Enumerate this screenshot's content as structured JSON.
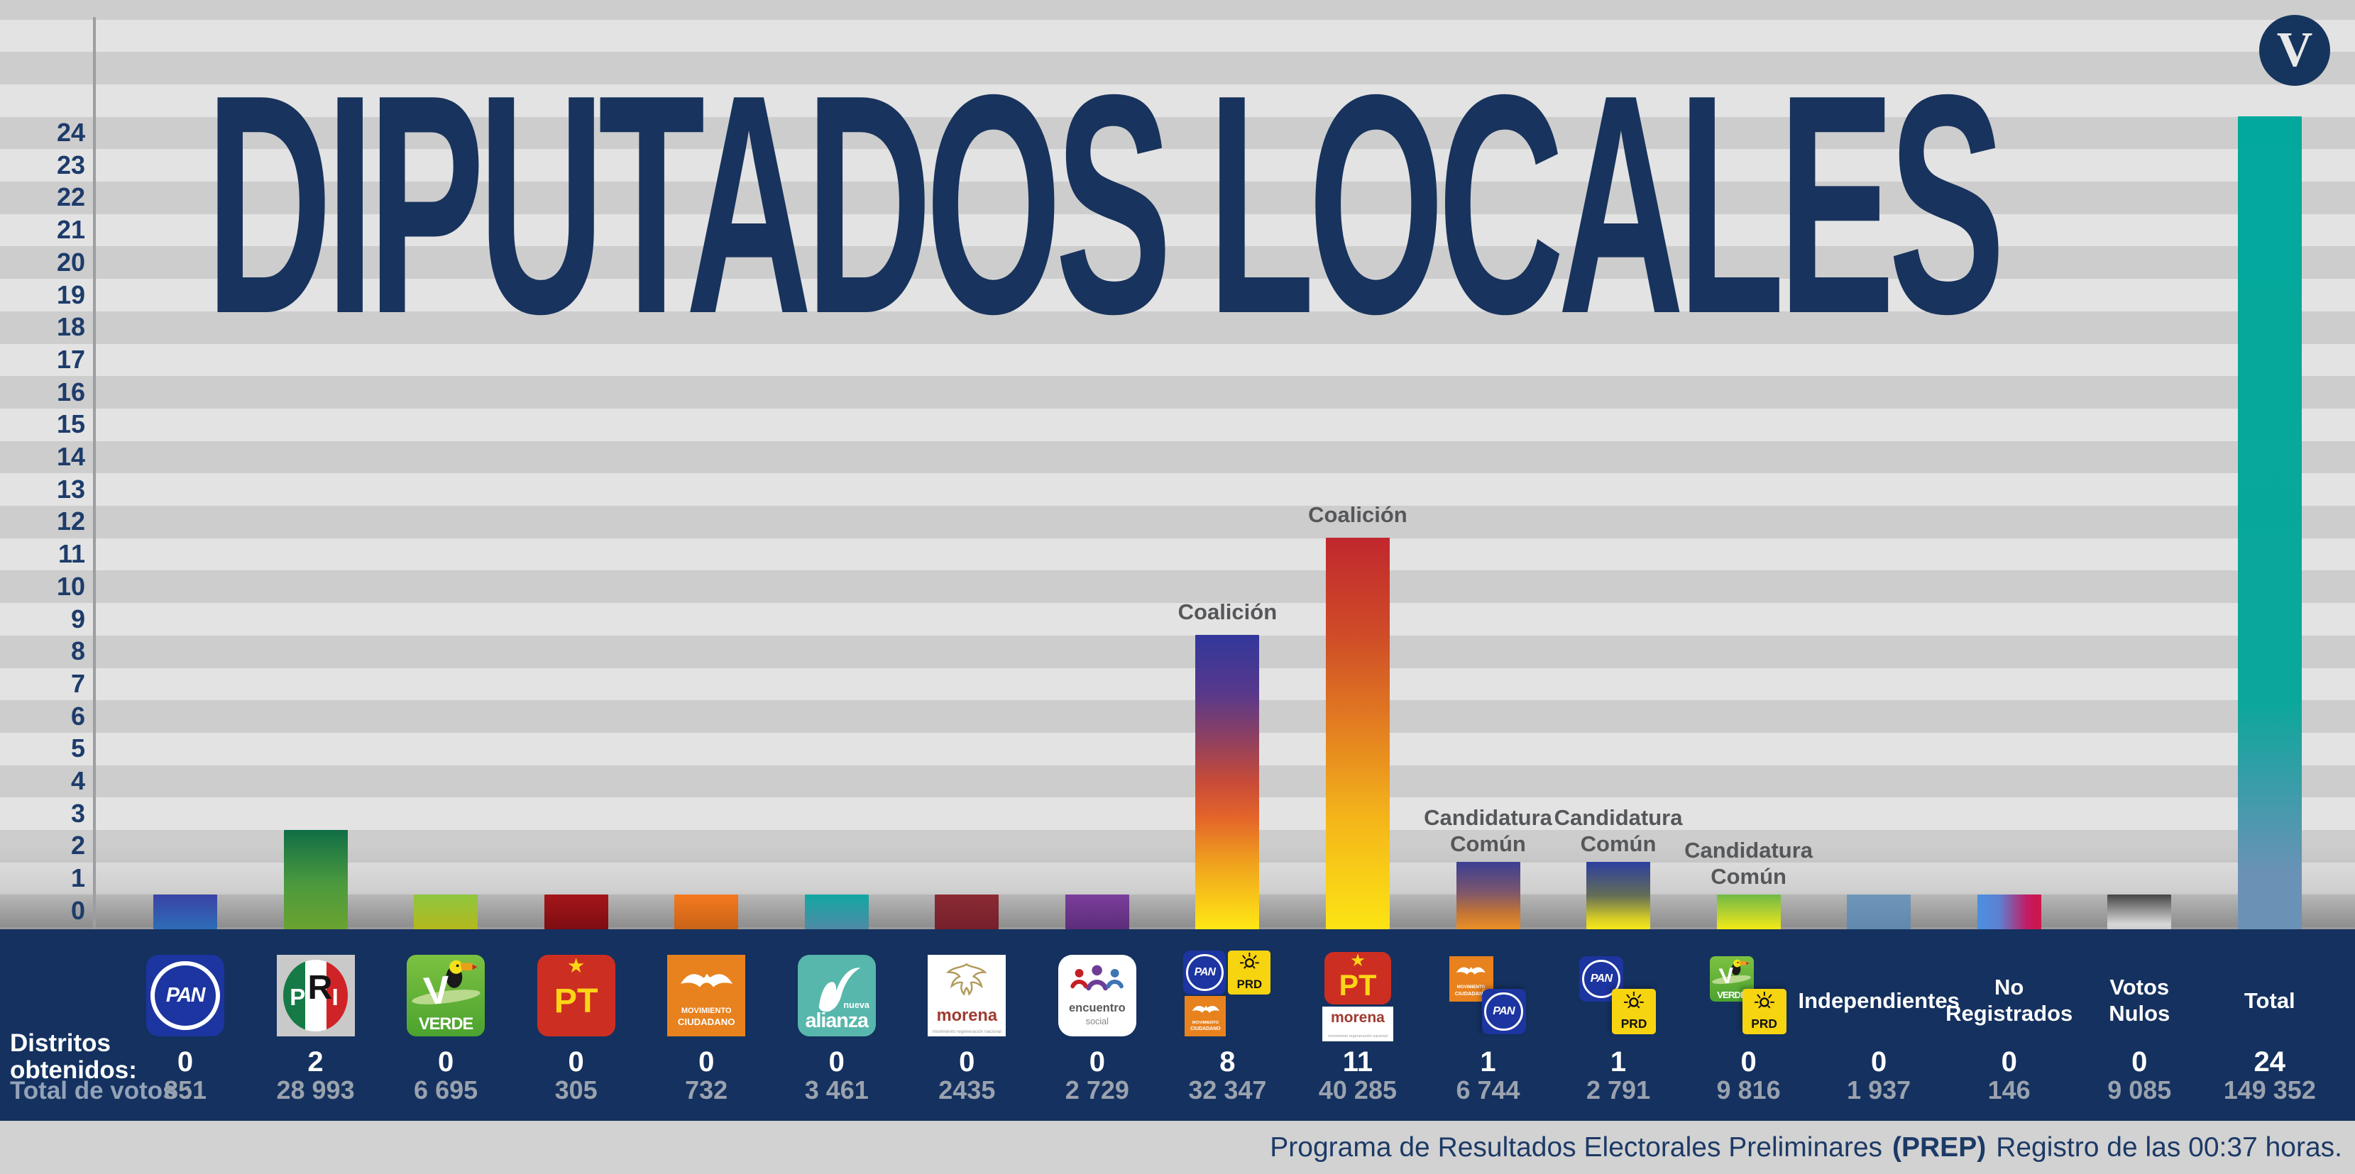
{
  "title": "DIPUTADOS LOCALES",
  "brand": {
    "letter": "V"
  },
  "footer": {
    "pre": "Programa de Resultados Electorales Preliminares",
    "bold": "(PREP)",
    "post": "Registro de las 00:37 horas."
  },
  "left_labels": {
    "districts": "Distritos obtenidos:",
    "votes": "Total de votos :"
  },
  "axis": {
    "min": 0,
    "max": 24
  },
  "colors": {
    "navy_band": "#14315f",
    "footer_bg": "#d2d2d2",
    "title": "#18335d",
    "stripe_dark": "#cdcdcd",
    "stripe_light": "#e3e3e3",
    "axis_text": "#1d3c6b",
    "annotation_text": "#55575a",
    "districts_text": "#ffffff",
    "votes_text": "#9aa2ae"
  },
  "chart_data": {
    "type": "bar",
    "title": "DIPUTADOS LOCALES",
    "xlabel": "",
    "ylabel": "Distritos obtenidos",
    "ylim": [
      0,
      24
    ],
    "grid": "horizontal-stripes",
    "legend_position": "none",
    "categories": [
      "PAN",
      "PRI",
      "VERDE",
      "PT",
      "Movimiento Ciudadano",
      "Nueva Alianza",
      "Morena",
      "Encuentro Social",
      "Coalición PAN-PRD-MC",
      "Coalición PT-Morena",
      "Candidatura Común MC-PAN",
      "Candidatura Común PAN-PRD",
      "Candidatura Común VERDE-PRD",
      "Independientes",
      "No Registrados",
      "Votos Nulos",
      "Total"
    ],
    "series": [
      {
        "name": "Distritos obtenidos",
        "values": [
          0,
          2,
          0,
          0,
          0,
          0,
          0,
          0,
          8,
          11,
          1,
          1,
          0,
          0,
          0,
          0,
          24
        ]
      },
      {
        "name": "Total de votos",
        "values": [
          851,
          28993,
          6695,
          305,
          732,
          3461,
          2435,
          2729,
          32347,
          40285,
          6744,
          2791,
          9816,
          1937,
          146,
          9085,
          149352
        ]
      }
    ],
    "annotations": [
      {
        "index": 8,
        "text": "Coalición"
      },
      {
        "index": 9,
        "text": "Coalición"
      },
      {
        "index": 10,
        "text": "Candidatura Común"
      },
      {
        "index": 11,
        "text": "Candidatura Común"
      },
      {
        "index": 12,
        "text": "Candidatura Común"
      }
    ]
  },
  "columns": [
    {
      "name": "pan",
      "value": 0,
      "districts": "0",
      "votes": "851",
      "annotation": null,
      "bar_css": "linear-gradient(180deg,#3a43a4 0%,#2e6cb8 100%)",
      "logo": {
        "layout": "single",
        "tiles": [
          {
            "type": "pan",
            "text": "PAN"
          }
        ]
      }
    },
    {
      "name": "pri",
      "value": 2,
      "districts": "2",
      "votes": "28 993",
      "annotation": null,
      "bar_css": "linear-gradient(180deg,#106e46 0%,#4c9a3e 55%,#6aa330 100%)",
      "logo": {
        "layout": "single",
        "tiles": [
          {
            "type": "pri",
            "letters": [
              "P",
              "R",
              "I"
            ]
          }
        ]
      }
    },
    {
      "name": "verde",
      "value": 0,
      "districts": "0",
      "votes": "6 695",
      "annotation": null,
      "bar_css": "linear-gradient(180deg,#8ec63f 0%,#b4b81d 100%)",
      "logo": {
        "layout": "single",
        "tiles": [
          {
            "type": "verde",
            "v": "V",
            "text": "VERDE"
          }
        ]
      }
    },
    {
      "name": "pt",
      "value": 0,
      "districts": "0",
      "votes": "305",
      "annotation": null,
      "bar_css": "linear-gradient(180deg,#a4161a 0%,#7e0d12 100%)",
      "logo": {
        "layout": "single",
        "tiles": [
          {
            "type": "pt",
            "star": "★",
            "text": "PT"
          }
        ]
      }
    },
    {
      "name": "movimiento-ciudadano",
      "value": 0,
      "districts": "0",
      "votes": "732",
      "annotation": null,
      "bar_css": "linear-gradient(180deg,#f5791f 0%,#c96317 100%)",
      "logo": {
        "layout": "single",
        "tiles": [
          {
            "type": "mc",
            "lines": [
              "MOVIMIENTO",
              "CIUDADANO"
            ]
          }
        ]
      }
    },
    {
      "name": "nueva-alianza",
      "value": 0,
      "districts": "0",
      "votes": "3 461",
      "annotation": null,
      "bar_css": "linear-gradient(180deg,#12a8a2 0%,#4f8aa6 100%)",
      "logo": {
        "layout": "single",
        "tiles": [
          {
            "type": "na",
            "small": "nueva",
            "text": "alianza"
          }
        ]
      }
    },
    {
      "name": "morena",
      "value": 0,
      "districts": "0",
      "votes": "2435",
      "annotation": null,
      "bar_css": "linear-gradient(180deg,#8c2b33 0%,#74202c 100%)",
      "logo": {
        "layout": "single",
        "tiles": [
          {
            "type": "morena",
            "text": "morena",
            "sub": "movimiento regeneración nacional"
          }
        ]
      }
    },
    {
      "name": "encuentro-social",
      "value": 0,
      "districts": "0",
      "votes": "2 729",
      "annotation": null,
      "bar_css": "linear-gradient(180deg,#7c3e9c 0%,#5c2d79 100%)",
      "logo": {
        "layout": "single",
        "tiles": [
          {
            "type": "es",
            "line1": "encuentro",
            "line2": "social"
          }
        ]
      }
    },
    {
      "name": "coalicion-pan-prd-mc",
      "value": 8,
      "districts": "8",
      "votes": "32 347",
      "annotation": [
        "Coalición"
      ],
      "bar_css": "linear-gradient(180deg,#32379b 0%,#58398b 20%,#8e4061 35%,#c84b38 50%,#e4642a 62%,#f0a31d 78%,#ffe815 100%)",
      "logo": {
        "layout": "coal1",
        "tiles": [
          {
            "type": "pan",
            "text": "PAN"
          },
          {
            "type": "prd",
            "text": "PRD"
          },
          {
            "type": "mc",
            "lines": [
              "MOVIMIENTO",
              "CIUDADANO"
            ]
          }
        ]
      }
    },
    {
      "name": "coalicion-pt-morena",
      "value": 11,
      "districts": "11",
      "votes": "40 285",
      "annotation": [
        "Coalición"
      ],
      "bar_css": "linear-gradient(180deg,#c1272d 0%,#cf4c28 25%,#e48220 50%,#f4b61a 72%,#fce414 100%)",
      "logo": {
        "layout": "coal2",
        "tiles": [
          {
            "type": "pt",
            "star": "★",
            "text": "PT"
          },
          {
            "type": "morena-label",
            "text": "morena",
            "sub": "movimiento regeneración nacional"
          }
        ]
      }
    },
    {
      "name": "cc-mc-pan",
      "value": 1,
      "districts": "1",
      "votes": "6 744",
      "annotation": [
        "Candidatura",
        "Común"
      ],
      "bar_css": "linear-gradient(180deg,#3b3f94 0%,#7d566c 45%,#c27436 75%,#ec8f26 100%)",
      "logo": {
        "layout": "offset",
        "tiles": [
          {
            "type": "mc",
            "lines": [
              "MOVIMIENTO",
              "CIUDADANO"
            ]
          },
          {
            "type": "pan",
            "text": "PAN"
          }
        ]
      }
    },
    {
      "name": "cc-pan-prd",
      "value": 1,
      "districts": "1",
      "votes": "2 791",
      "annotation": [
        "Candidatura",
        "Común"
      ],
      "bar_css": "linear-gradient(180deg,#2c3f9f 0%,#646e57 50%,#d8cf25 85%,#f6e81a 100%)",
      "logo": {
        "layout": "offset",
        "tiles": [
          {
            "type": "pan",
            "text": "PAN"
          },
          {
            "type": "prd",
            "text": "PRD"
          }
        ]
      }
    },
    {
      "name": "cc-verde-prd",
      "value": 0,
      "districts": "0",
      "votes": "9 816",
      "annotation": [
        "Candidatura",
        "Común"
      ],
      "bar_css": "linear-gradient(180deg,#70ba46 0%,#b8d22f 55%,#f3ea15 100%)",
      "logo": {
        "layout": "offset",
        "tiles": [
          {
            "type": "verde",
            "v": "V",
            "text": "VERDE"
          },
          {
            "type": "prd",
            "text": "PRD"
          }
        ]
      }
    },
    {
      "name": "independientes",
      "value": 0,
      "districts": "0",
      "votes": "1 937",
      "annotation": null,
      "bar_css": "linear-gradient(180deg,#6e96b9 0%,#6089ad 100%)",
      "text_lines": [
        "Independientes"
      ]
    },
    {
      "name": "no-registrados",
      "value": 0,
      "districts": "0",
      "votes": "146",
      "annotation": null,
      "bar_css": "linear-gradient(90deg,#4a90e2 0%,#5f7fd0 35%,#c21a63 78%,#cd1747 100%)",
      "text_lines": [
        "No",
        "Registrados"
      ]
    },
    {
      "name": "votos-nulos",
      "value": 0,
      "districts": "0",
      "votes": "9 085",
      "annotation": null,
      "bar_css": "linear-gradient(180deg,#454545 0%,#8a8a8a 40%,#d6d6d6 85%,#cfcfcf 100%)",
      "text_lines": [
        "Votos",
        "Nulos"
      ]
    },
    {
      "name": "total",
      "value": 24,
      "districts": "24",
      "votes": "149 352",
      "annotation": null,
      "bar_css": "linear-gradient(180deg,#03a89c 0%,#0ba79c 72%,#6a92b5 93%,#6a92b5 100%)",
      "text_lines": [
        "Total"
      ]
    }
  ]
}
